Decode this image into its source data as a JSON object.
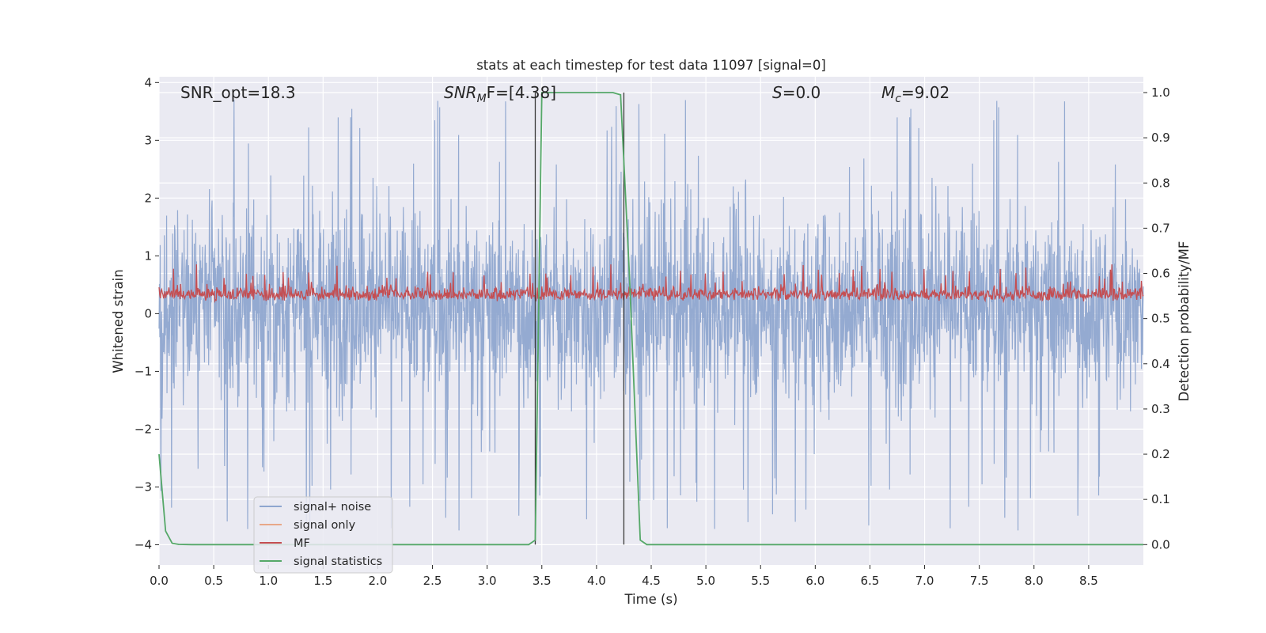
{
  "chart_data": {
    "type": "line",
    "title": "stats at each timestep for test data 11097 [signal=0]",
    "xlabel": "Time (s)",
    "ylabel": "Whitened strain",
    "ylabel_right": "Detection probability/MF",
    "xlim": [
      0.0,
      9.0
    ],
    "ylim": [
      -4.35,
      4.1
    ],
    "ylim_right": [
      -0.045,
      1.035
    ],
    "xticks": [
      "0.0",
      "0.5",
      "1.0",
      "1.5",
      "2.0",
      "2.5",
      "3.0",
      "3.5",
      "4.0",
      "4.5",
      "5.0",
      "5.5",
      "6.0",
      "6.5",
      "7.0",
      "7.5",
      "8.0",
      "8.5"
    ],
    "yticks": [
      "4",
      "3",
      "2",
      "1",
      "0",
      "−1",
      "−2",
      "−3",
      "−4"
    ],
    "yticks_right": [
      "1.0",
      "0.9",
      "0.8",
      "0.7",
      "0.6",
      "0.5",
      "0.4",
      "0.3",
      "0.2",
      "0.1",
      "0.0"
    ],
    "grid": true,
    "legend_position": "lower-left",
    "annotations": {
      "snr_opt": "SNR_opt=18.3",
      "snr_mf_base": "SNR",
      "snr_mf_sub": "M",
      "snr_mf_rest": "F=[4.38]",
      "s_var": "S",
      "s_rest": "=0.0",
      "mc_var": "M",
      "mc_sub": "c",
      "mc_rest": "=9.02"
    },
    "series": [
      {
        "name": "signal+ noise",
        "color": "#8fa6cf",
        "description_envelope_y": [
          -2.0,
          2.3
        ],
        "spike_range_y": [
          -4.0,
          3.7
        ]
      },
      {
        "name": "signal only",
        "color": "#e8a888",
        "values": []
      },
      {
        "name": "MF",
        "color": "#c44e52",
        "range_right_axis": [
          0.51,
          0.62
        ]
      },
      {
        "name": "signal statistics",
        "color": "#55a868",
        "x": [
          0.0,
          0.06,
          0.12,
          0.18,
          0.3,
          3.38,
          3.44,
          3.5,
          3.9,
          4.15,
          4.22,
          4.3,
          4.4,
          4.46,
          9.0
        ],
        "y": [
          0.2,
          0.03,
          0.003,
          0.0005,
          0.0,
          0.0,
          0.01,
          1.0,
          1.0,
          1.0,
          0.995,
          0.6,
          0.01,
          0.0,
          0.0
        ]
      }
    ],
    "vertical_lines_x": [
      3.44,
      4.25
    ]
  }
}
